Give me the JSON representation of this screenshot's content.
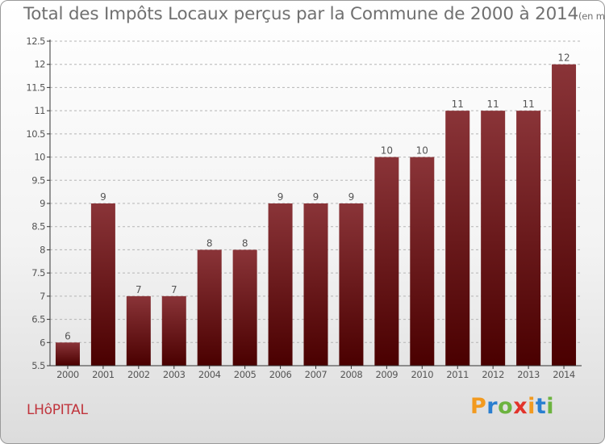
{
  "page": {
    "title": "Total des Impôts Locaux perçus par la Commune de 2000 à 2014",
    "title_unit": "(en milliers d'€)",
    "commune": "LHôPITAL",
    "brand": "Proxiti"
  },
  "colors": {
    "bar_top": "#8a3438",
    "bar_bottom": "#4a0000",
    "title": "#707070",
    "commune": "#c0343c",
    "axis": "#333333",
    "grid": "#b5b5b5"
  },
  "logo_letters": [
    {
      "ch": "P",
      "color": "#f29a1f"
    },
    {
      "ch": "r",
      "color": "#2a7fd0"
    },
    {
      "ch": "o",
      "color": "#6cb33f"
    },
    {
      "ch": "x",
      "color": "#e2332b"
    },
    {
      "ch": "i",
      "color": "#f29a1f"
    },
    {
      "ch": "t",
      "color": "#2a7fd0"
    },
    {
      "ch": "i",
      "color": "#6cb33f"
    }
  ],
  "chart_data": {
    "type": "bar",
    "title": "Total des Impôts Locaux perçus par la Commune de 2000 à 2014",
    "xlabel": "",
    "ylabel": "",
    "categories": [
      "2000",
      "2001",
      "2002",
      "2003",
      "2004",
      "2005",
      "2006",
      "2007",
      "2008",
      "2009",
      "2010",
      "2011",
      "2012",
      "2013",
      "2014"
    ],
    "values": [
      6,
      9,
      7,
      7,
      8,
      8,
      9,
      9,
      9,
      10,
      10,
      11,
      11,
      11,
      12
    ],
    "ylim": [
      5.5,
      12.5
    ],
    "yticks": [
      "5.5",
      "6",
      "6.5",
      "7",
      "7.5",
      "8",
      "8.5",
      "9",
      "9.5",
      "10",
      "10.5",
      "11",
      "11.5",
      "12",
      "12.5"
    ],
    "grid": true,
    "legend": "none"
  }
}
